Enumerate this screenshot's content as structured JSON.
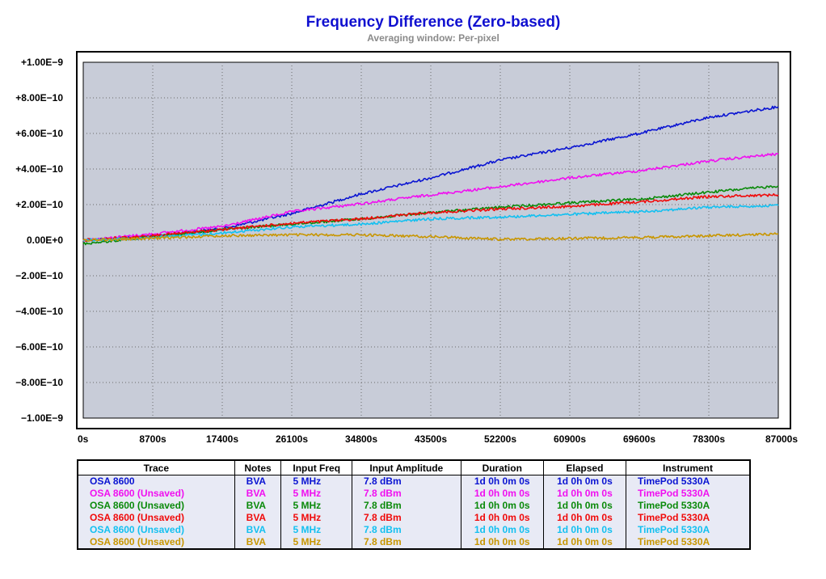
{
  "chart_data": {
    "type": "line",
    "title": "Frequency Difference (Zero-based)",
    "subtitle": "Averaging window: Per-pixel",
    "xlim": [
      0,
      87000
    ],
    "ylim": [
      -1e-09,
      1e-09
    ],
    "grid": true,
    "x_tick_labels": [
      "0s",
      "8700s",
      "17400s",
      "26100s",
      "34800s",
      "43500s",
      "52200s",
      "60900s",
      "69600s",
      "78300s",
      "87000s"
    ],
    "y_tick_labels": [
      "+1.00E−9",
      "+8.00E−10",
      "+6.00E−10",
      "+4.00E−10",
      "+2.00E−10",
      "0.00E+0",
      "−2.00E−10",
      "−4.00E−10",
      "−6.00E−10",
      "−8.00E−10",
      "−1.00E−9"
    ],
    "x": [
      0,
      8700,
      17400,
      26100,
      34800,
      43500,
      52200,
      60900,
      69600,
      78300,
      87000
    ],
    "series": [
      {
        "name": "OSA 8600",
        "color": "#0a14d2",
        "values": [
          0,
          2.3e-11,
          6.5e-11,
          1.5e-10,
          2.6e-10,
          3.5e-10,
          4.5e-10,
          5.2e-10,
          6e-10,
          6.9e-10,
          7.5e-10
        ]
      },
      {
        "name": "OSA 8600 (Unsaved)",
        "color": "#f00ff0",
        "values": [
          0,
          3.5e-11,
          7.7e-11,
          1.6e-10,
          2.05e-10,
          2.55e-10,
          3e-10,
          3.5e-10,
          3.9e-10,
          4.45e-10,
          4.85e-10
        ]
      },
      {
        "name": "OSA 8600 (Unsaved)",
        "color": "#0a8a0a",
        "values": [
          -2e-11,
          1.8e-11,
          6e-11,
          9e-11,
          1.2e-10,
          1.55e-10,
          1.85e-10,
          2.1e-10,
          2.3e-10,
          2.7e-10,
          3.05e-10
        ]
      },
      {
        "name": "OSA 8600 (Unsaved)",
        "color": "#f00a0a",
        "values": [
          0,
          2.5e-11,
          6e-11,
          9.5e-11,
          1.2e-10,
          1.55e-10,
          1.75e-10,
          1.9e-10,
          2.15e-10,
          2.45e-10,
          2.55e-10
        ]
      },
      {
        "name": "OSA 8600 (Unsaved)",
        "color": "#14c0f0",
        "values": [
          0,
          1.5e-11,
          4e-11,
          7.5e-11,
          9e-11,
          1.2e-10,
          1.3e-10,
          1.45e-10,
          1.6e-10,
          1.85e-10,
          1.95e-10
        ]
      },
      {
        "name": "OSA 8600 (Unsaved)",
        "color": "#c89600",
        "values": [
          0,
          1e-11,
          2.5e-11,
          3e-11,
          3e-11,
          2e-11,
          5e-12,
          1e-11,
          1.5e-11,
          2.5e-11,
          3.5e-11
        ]
      }
    ]
  },
  "table": {
    "headers": [
      "Trace",
      "Notes",
      "Input Freq",
      "Input Amplitude",
      "Duration",
      "Elapsed",
      "Instrument"
    ],
    "rows": [
      {
        "color": "#0a14d2",
        "cells": [
          "OSA 8600",
          "BVA",
          "5 MHz",
          "7.8 dBm",
          "1d 0h 0m 0s",
          "1d 0h 0m 0s",
          "TimePod 5330A"
        ]
      },
      {
        "color": "#f00ff0",
        "cells": [
          "OSA 8600 (Unsaved)",
          "BVA",
          "5 MHz",
          "7.8 dBm",
          "1d 0h 0m 0s",
          "1d 0h 0m 0s",
          "TimePod 5330A"
        ]
      },
      {
        "color": "#0a8a0a",
        "cells": [
          "OSA 8600 (Unsaved)",
          "BVA",
          "5 MHz",
          "7.8 dBm",
          "1d 0h 0m 0s",
          "1d 0h 0m 0s",
          "TimePod 5330A"
        ]
      },
      {
        "color": "#f00a0a",
        "cells": [
          "OSA 8600 (Unsaved)",
          "BVA",
          "5 MHz",
          "7.8 dBm",
          "1d 0h 0m 0s",
          "1d 0h 0m 0s",
          "TimePod 5330A"
        ]
      },
      {
        "color": "#14c0f0",
        "cells": [
          "OSA 8600 (Unsaved)",
          "BVA",
          "5 MHz",
          "7.8 dBm",
          "1d 0h 0m 0s",
          "1d 0h 0m 0s",
          "TimePod 5330A"
        ]
      },
      {
        "color": "#c89600",
        "cells": [
          "OSA 8600 (Unsaved)",
          "BVA",
          "5 MHz",
          "7.8 dBm",
          "1d 0h 0m 0s",
          "1d 0h 0m 0s",
          "TimePod 5330A"
        ]
      }
    ]
  }
}
